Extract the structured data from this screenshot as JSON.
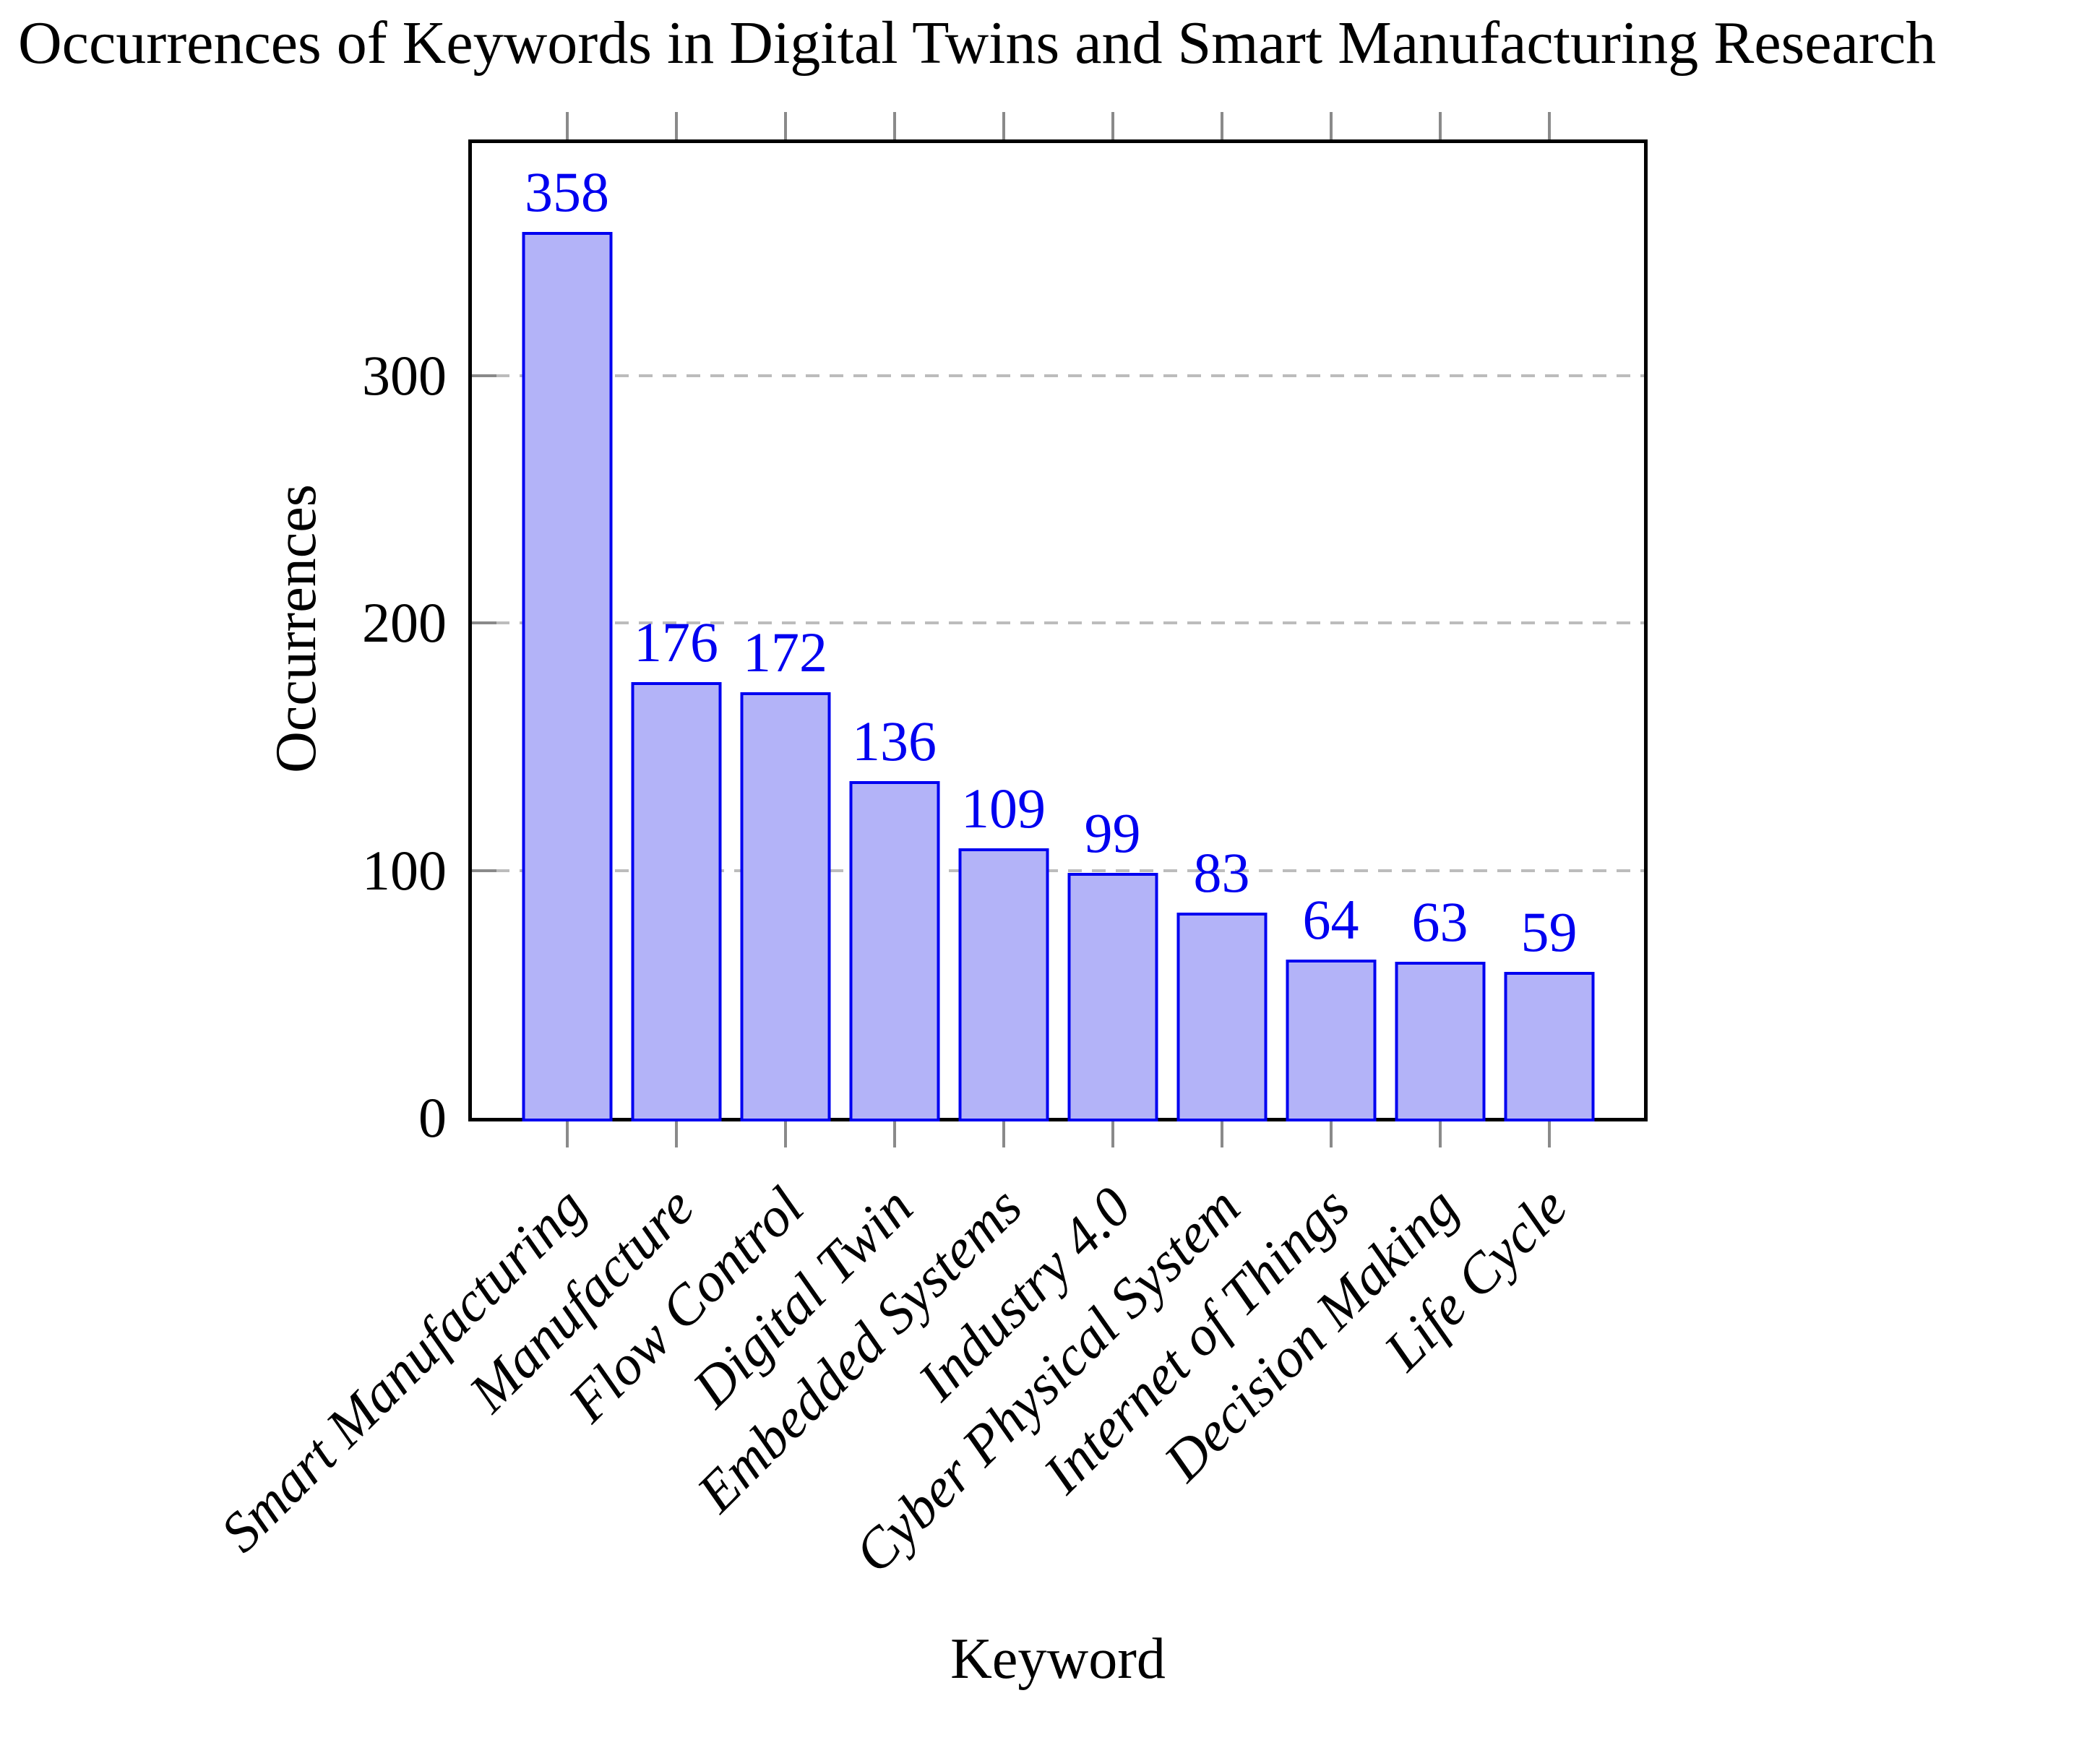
{
  "chart_data": {
    "type": "bar",
    "title": "Occurrences of Keywords in Digital Twins and Smart Manufacturing Research",
    "xlabel": "Keyword",
    "ylabel": "Occurrences",
    "categories": [
      "Smart Manufacturing",
      "Manufacture",
      "Flow Control",
      "Digital Twin",
      "Embedded Systems",
      "Industry 4.0",
      "Cyber Physical System",
      "Internet of Things",
      "Decision Making",
      "Life Cycle"
    ],
    "values": [
      358,
      176,
      172,
      136,
      109,
      99,
      83,
      64,
      63,
      59
    ],
    "value_labels": [
      "358",
      "176",
      "172",
      "136",
      "109",
      "99",
      "83",
      "64",
      "63",
      "59"
    ],
    "yticks": [
      0,
      100,
      200,
      300
    ],
    "ylim": [
      0,
      394
    ],
    "grid": "horizontal dashed at 100, 200, 300",
    "legend_position": "none",
    "colors": {
      "bar_fill": "#b3b3f8",
      "bar_border": "#0000f0",
      "value_label": "#0000f0",
      "gridline": "#bcbcbc",
      "tick": "#8a8a8a",
      "axis_frame": "#000000",
      "text": "#000000",
      "background": "#ffffff"
    }
  }
}
